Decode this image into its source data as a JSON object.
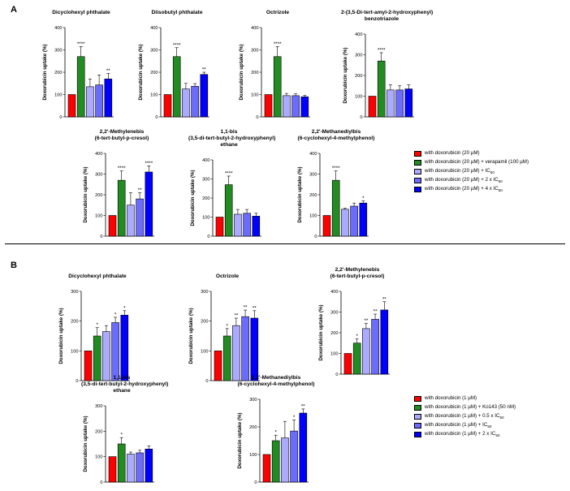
{
  "panels": [
    {
      "id": "A",
      "label": "A"
    },
    {
      "id": "B",
      "label": "B"
    }
  ],
  "y_axis_label": "Doxorubicin uptake (%)",
  "bar_colors": [
    "#ff0000",
    "#228b22",
    "#aaaaff",
    "#6b6bff",
    "#0000ff"
  ],
  "legends": {
    "A": [
      {
        "label": "with doxorubicin (20 µM)"
      },
      {
        "label": "with doxorubicin (20 µM) + verapamil (100 µM)"
      },
      {
        "label": "with doxorubicin (20 µM) + IC",
        "sub": "50"
      },
      {
        "label": "with doxorubicin (20 µM) + 2 x IC",
        "sub": "50"
      },
      {
        "label": "with doxorubicin (20 µM) + 4 x IC",
        "sub": "50"
      }
    ],
    "B": [
      {
        "label": "with doxorubicin (1 µM)"
      },
      {
        "label": "with doxorubicin (1 µM) + Ko143 (50 nM)"
      },
      {
        "label": "with doxorubicin (1 µM) + 0.5 x IC",
        "sub": "50"
      },
      {
        "label": "with doxorubicin (1 µM) + IC",
        "sub": "50"
      },
      {
        "label": "with doxorubicin (1 µM) + 2 x IC",
        "sub": "50"
      }
    ]
  },
  "chart_data": [
    {
      "panel": "A",
      "type": "bar",
      "title": "Dicyclohexyl phthalate",
      "ylabel": "Doxorubicin uptake (%)",
      "ylim": [
        0,
        400
      ],
      "yticks": [
        0,
        100,
        200,
        300,
        400
      ],
      "values": [
        100,
        270,
        135,
        143,
        170
      ],
      "errors": [
        0,
        45,
        35,
        45,
        25
      ],
      "sig": [
        "",
        "****",
        "",
        "",
        "**"
      ]
    },
    {
      "panel": "A",
      "type": "bar",
      "title": "Diisobutyl phthalate",
      "ylabel": "Doxorubicin uptake (%)",
      "ylim": [
        0,
        400
      ],
      "yticks": [
        0,
        100,
        200,
        300,
        400
      ],
      "values": [
        100,
        270,
        125,
        137,
        190
      ],
      "errors": [
        0,
        40,
        25,
        12,
        10
      ],
      "sig": [
        "",
        "****",
        "",
        "",
        "**"
      ]
    },
    {
      "panel": "A",
      "type": "bar",
      "title": "Octrizole",
      "ylabel": "Doxorubicin uptake (%)",
      "ylim": [
        0,
        400
      ],
      "yticks": [
        0,
        100,
        200,
        300,
        400
      ],
      "values": [
        100,
        270,
        95,
        95,
        90
      ],
      "errors": [
        0,
        45,
        10,
        8,
        6
      ],
      "sig": [
        "",
        "****",
        "",
        "",
        ""
      ]
    },
    {
      "panel": "A",
      "type": "bar",
      "title": "2-(3,5-Di-tert-amyl-2-hydroxyphenyl)\nbenzotriazole",
      "ylabel": "Doxorubicin uptake (%)",
      "ylim": [
        0,
        400
      ],
      "yticks": [
        0,
        100,
        200,
        300,
        400
      ],
      "values": [
        100,
        270,
        130,
        130,
        135
      ],
      "errors": [
        0,
        40,
        25,
        20,
        20
      ],
      "sig": [
        "",
        "****",
        "",
        "",
        ""
      ]
    },
    {
      "panel": "A",
      "type": "bar",
      "title": "2,2'-Methylenebis\n(6-tert-butyl-p-cresol)",
      "ylabel": "Doxorubicin uptake (%)",
      "ylim": [
        0,
        400
      ],
      "yticks": [
        0,
        100,
        200,
        300,
        400
      ],
      "values": [
        100,
        270,
        150,
        180,
        310
      ],
      "errors": [
        0,
        45,
        60,
        30,
        30
      ],
      "sig": [
        "",
        "****",
        "",
        "**",
        "****"
      ]
    },
    {
      "panel": "A",
      "type": "bar",
      "title": "1,1-bis\n(3,5-di-tert-butyl-2-hydroxyphenyl)\nethane",
      "ylabel": "Doxorubicin uptake (%)",
      "ylim": [
        0,
        400
      ],
      "yticks": [
        0,
        100,
        200,
        300,
        400
      ],
      "values": [
        100,
        270,
        115,
        120,
        105
      ],
      "errors": [
        0,
        45,
        25,
        20,
        15
      ],
      "sig": [
        "",
        "****",
        "",
        "",
        ""
      ]
    },
    {
      "panel": "A",
      "type": "bar",
      "title": "2,2'-Methanediylbis\n(6-cyclohexyl-4-methylphenol)",
      "ylabel": "Doxorubicin uptake (%)",
      "ylim": [
        0,
        400
      ],
      "yticks": [
        0,
        100,
        200,
        300,
        400
      ],
      "values": [
        100,
        270,
        130,
        145,
        160
      ],
      "errors": [
        0,
        45,
        5,
        15,
        10
      ],
      "sig": [
        "",
        "****",
        "",
        "",
        "*"
      ]
    },
    {
      "panel": "B",
      "type": "bar",
      "title": "Dicyclohexyl phthalate",
      "ylabel": "Doxorubicin uptake (%)",
      "ylim": [
        0,
        300
      ],
      "yticks": [
        0,
        100,
        200,
        300
      ],
      "values": [
        100,
        150,
        165,
        195,
        220
      ],
      "errors": [
        0,
        28,
        20,
        18,
        15
      ],
      "sig": [
        "",
        "*",
        "",
        "*",
        "*"
      ]
    },
    {
      "panel": "B",
      "type": "bar",
      "title": "Octrizole",
      "ylabel": "Doxorubicin uptake (%)",
      "ylim": [
        0,
        300
      ],
      "yticks": [
        0,
        100,
        200,
        300
      ],
      "values": [
        100,
        150,
        185,
        215,
        210
      ],
      "errors": [
        0,
        25,
        25,
        22,
        25
      ],
      "sig": [
        "",
        "*",
        "**",
        "**",
        "**"
      ]
    },
    {
      "panel": "B",
      "type": "bar",
      "title": "2,2'-Methylenebis\n(6-tert-butyl-p-cresol)",
      "ylabel": "Doxorubicin uptake (%)",
      "ylim": [
        0,
        400
      ],
      "yticks": [
        0,
        100,
        200,
        300,
        400
      ],
      "values": [
        100,
        150,
        220,
        265,
        310
      ],
      "errors": [
        0,
        20,
        25,
        25,
        40
      ],
      "sig": [
        "",
        "*",
        "**",
        "**",
        "**"
      ]
    },
    {
      "panel": "B",
      "type": "bar",
      "title": "1,1-bis\n(3,5-di-tert-butyl-2-hydroxyphenyl)\nethane",
      "ylabel": "Doxorubicin uptake (%)",
      "ylim": [
        0,
        300
      ],
      "yticks": [
        0,
        100,
        200,
        300
      ],
      "values": [
        100,
        150,
        110,
        115,
        130
      ],
      "errors": [
        0,
        25,
        8,
        10,
        12
      ],
      "sig": [
        "",
        "*",
        "",
        "",
        ""
      ]
    },
    {
      "panel": "B",
      "type": "bar",
      "title": "2,2'-Methanediylbis\n(6-cyclohexyl-4-methylphenol)",
      "ylabel": "Doxorubicin uptake (%)",
      "ylim": [
        0,
        300
      ],
      "yticks": [
        0,
        100,
        200,
        300
      ],
      "values": [
        100,
        150,
        160,
        185,
        250
      ],
      "errors": [
        0,
        20,
        60,
        40,
        15
      ],
      "sig": [
        "",
        "*",
        "",
        "*",
        "**"
      ]
    }
  ]
}
